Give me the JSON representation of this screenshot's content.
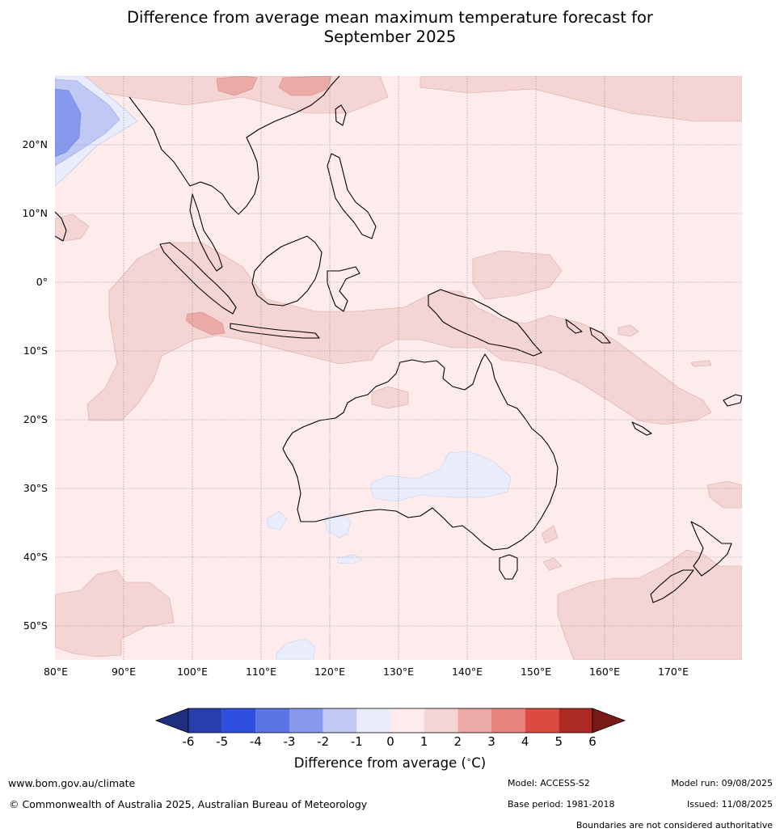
{
  "title_line1": "Difference from average mean maximum temperature forecast for",
  "title_line2": "September 2025",
  "map": {
    "lon_labels": [
      "80°E",
      "90°E",
      "100°E",
      "110°E",
      "120°E",
      "130°E",
      "140°E",
      "150°E",
      "160°E",
      "170°E"
    ],
    "lat_labels": [
      "20°N",
      "10°N",
      "0°",
      "10°S",
      "20°S",
      "30°S",
      "40°S",
      "50°S"
    ],
    "lon_range": [
      80,
      180
    ],
    "lat_range": [
      -55,
      30
    ],
    "gridlines": true
  },
  "colorbar": {
    "ticks": [
      "-6",
      "-5",
      "-4",
      "-3",
      "-2",
      "-1",
      "0",
      "1",
      "2",
      "3",
      "4",
      "5",
      "6"
    ],
    "colors": [
      "#1f2f80",
      "#2a3fae",
      "#2e4fe0",
      "#5a75e6",
      "#8699ec",
      "#c0c9f4",
      "#e9ecfb",
      "#fdeceb",
      "#f5d5d3",
      "#ecaaa7",
      "#e8847e",
      "#dc4b41",
      "#ad2a22",
      "#7a1a16"
    ],
    "label": "Difference from average ($^\\circ$C)",
    "label_text": "Difference from average (",
    "label_unit": "C)"
  },
  "footer": {
    "website": "www.bom.gov.au/climate",
    "copyright": "© Commonwealth of Australia 2025, Australian Bureau of Meteorology",
    "model": "Model: ACCESS-S2",
    "base_period": "Base period: 1981-2018",
    "model_run": "Model run: 09/08/2025",
    "issued": "Issued: 11/08/2025",
    "disclaimer": "Boundaries are not considered authoritative"
  }
}
